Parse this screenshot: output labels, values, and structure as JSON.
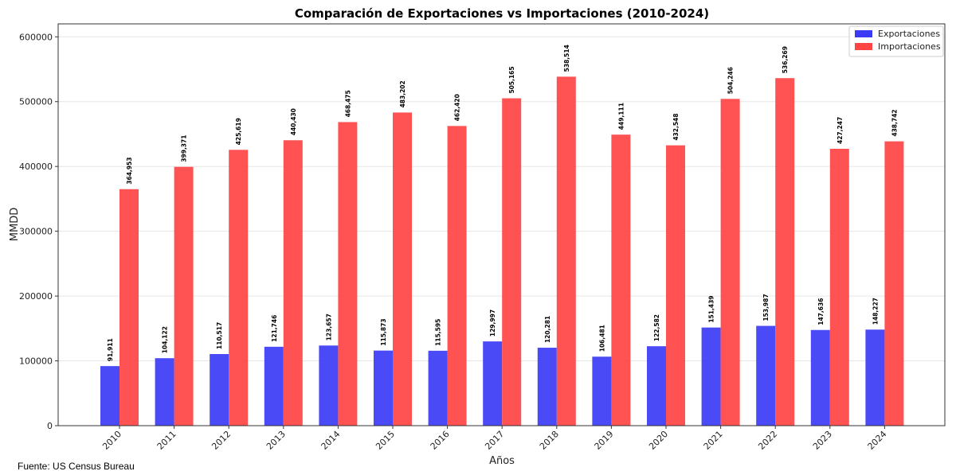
{
  "chart_data": {
    "type": "bar",
    "title": "Comparación de Exportaciones vs Importaciones (2010-2024)",
    "xlabel": "Años",
    "ylabel": "MMDD",
    "categories": [
      "2010",
      "2011",
      "2012",
      "2013",
      "2014",
      "2015",
      "2016",
      "2017",
      "2018",
      "2019",
      "2020",
      "2021",
      "2022",
      "2023",
      "2024"
    ],
    "series": [
      {
        "name": "Exportaciones",
        "color": "#3b3bf5",
        "values": [
          91911,
          104122,
          110517,
          121746,
          123657,
          115873,
          115595,
          129997,
          120281,
          106481,
          122582,
          151439,
          153987,
          147636,
          148227
        ],
        "labels": [
          "91,911",
          "104,122",
          "110,517",
          "121,746",
          "123,657",
          "115,873",
          "115,595",
          "129,997",
          "120,281",
          "106,481",
          "122,582",
          "151,439",
          "153,987",
          "147,636",
          "148,227"
        ]
      },
      {
        "name": "Importaciones",
        "color": "#ff4444",
        "values": [
          364953,
          399371,
          425619,
          440430,
          468475,
          483202,
          462420,
          505165,
          538514,
          449111,
          432548,
          504246,
          536269,
          427247,
          438742
        ],
        "labels": [
          "364,953",
          "399,371",
          "425,619",
          "440,430",
          "468,475",
          "483,202",
          "462,420",
          "505,165",
          "538,514",
          "449,111",
          "432,548",
          "504,246",
          "536,269",
          "427,247",
          "438,742"
        ]
      }
    ],
    "ylim": [
      0,
      620000
    ],
    "yticks": [
      0,
      100000,
      200000,
      300000,
      400000,
      500000,
      600000
    ],
    "ytick_labels": [
      "0",
      "100000",
      "200000",
      "300000",
      "400000",
      "500000",
      "600000"
    ],
    "grid": true,
    "legend_position": "top-right"
  },
  "footer": {
    "source": "Fuente: US Census Bureau"
  }
}
